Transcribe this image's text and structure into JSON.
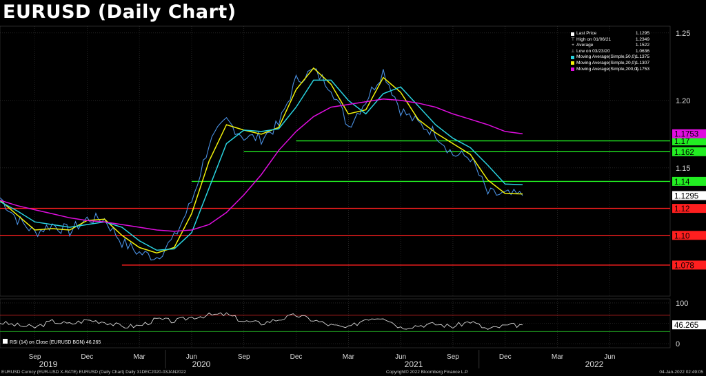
{
  "title": "EURUSD (Daily Chart)",
  "colors": {
    "background": "#000000",
    "price": "#4a90e2",
    "ma50": "#29d3e0",
    "ma20": "#f2f20a",
    "ma200": "#e00ee0",
    "support_resistance_green": "#22ee22",
    "support_resistance_red": "#ff1f1f",
    "rsi": "#d8d8d8"
  },
  "legend": [
    {
      "label": "Last Price",
      "value": "1.1295",
      "mark": "square-white"
    },
    {
      "label": "High on 01/06/21",
      "value": "1.2349",
      "mark": "high-marker"
    },
    {
      "label": "Average",
      "value": "1.1522",
      "mark": "average-marker"
    },
    {
      "label": "Low on 03/23/20",
      "value": "1.0636",
      "mark": "low-marker"
    },
    {
      "label": "Moving Average(Simple,50,0)",
      "value": "1.1375",
      "color": "#29d3e0"
    },
    {
      "label": "Moving Average(Simple,20,0)",
      "value": "1.1307",
      "color": "#f2f20a"
    },
    {
      "label": "Moving Average(Simple,200,0)",
      "value": "1.1753",
      "color": "#e00ee0"
    }
  ],
  "footer": {
    "left": "EURUSD Curncy (EUR-USD X-RATE) EURUSD (Daily Chart)  Daily 31DEC2020-03JAN2022",
    "center": "Copyright© 2022 Bloomberg Finance L.P.",
    "right": "04-Jan-2022 02:49:05"
  },
  "chart_data": [
    {
      "type": "line",
      "title": "EURUSD (Daily Chart)",
      "y_axis_position": "right",
      "ylim": [
        1.055,
        1.255
      ],
      "y_ticks": [
        1.25,
        1.2,
        1.15
      ],
      "x_ticks": [
        "Sep",
        "Dec",
        "Mar",
        "Jun",
        "Sep",
        "Dec",
        "Mar",
        "Jun",
        "Sep",
        "Dec",
        "Mar",
        "Jun"
      ],
      "x_year_labels": [
        "2019",
        "2020",
        "2021",
        "2022"
      ],
      "grid": true,
      "legend_position": "top-right",
      "x": [
        "Jul 2019",
        "Aug 2019",
        "Sep 2019",
        "Oct 2019",
        "Nov 2019",
        "Dec 2019",
        "Jan 2020",
        "Feb 2020",
        "Mar 2020",
        "Apr 2020",
        "May 2020",
        "Jun 2020",
        "Jul 2020",
        "Aug 2020",
        "Sep 2020",
        "Oct 2020",
        "Nov 2020",
        "Dec 2020",
        "Jan 2021",
        "Feb 2021",
        "Mar 2021",
        "Apr 2021",
        "May 2021",
        "Jun 2021",
        "Jul 2021",
        "Aug 2021",
        "Sep 2021",
        "Oct 2021",
        "Nov 2021",
        "Dec 2021",
        "Jan 2022"
      ],
      "series": [
        {
          "name": "Last Price",
          "values": [
            1.128,
            1.112,
            1.102,
            1.108,
            1.103,
            1.112,
            1.112,
            1.095,
            1.087,
            1.084,
            1.098,
            1.125,
            1.168,
            1.185,
            1.173,
            1.172,
            1.182,
            1.215,
            1.222,
            1.21,
            1.181,
            1.2,
            1.222,
            1.193,
            1.183,
            1.176,
            1.16,
            1.158,
            1.131,
            1.13,
            1.1295
          ]
        },
        {
          "name": "Moving Average(Simple,20,0)",
          "values": [
            1.126,
            1.115,
            1.104,
            1.105,
            1.104,
            1.111,
            1.112,
            1.1,
            1.091,
            1.087,
            1.091,
            1.116,
            1.155,
            1.182,
            1.178,
            1.175,
            1.18,
            1.208,
            1.224,
            1.212,
            1.19,
            1.193,
            1.217,
            1.206,
            1.186,
            1.176,
            1.168,
            1.16,
            1.141,
            1.131,
            1.1307
          ]
        },
        {
          "name": "Moving Average(Simple,50,0)",
          "values": [
            1.125,
            1.118,
            1.11,
            1.108,
            1.106,
            1.108,
            1.11,
            1.106,
            1.096,
            1.089,
            1.09,
            1.102,
            1.135,
            1.168,
            1.178,
            1.177,
            1.179,
            1.195,
            1.215,
            1.215,
            1.2,
            1.19,
            1.205,
            1.21,
            1.196,
            1.182,
            1.172,
            1.165,
            1.152,
            1.138,
            1.1375
          ]
        },
        {
          "name": "Moving Average(Simple,200,0)",
          "values": [
            1.126,
            1.122,
            1.119,
            1.116,
            1.113,
            1.111,
            1.11,
            1.108,
            1.106,
            1.104,
            1.103,
            1.104,
            1.108,
            1.117,
            1.13,
            1.145,
            1.163,
            1.177,
            1.188,
            1.195,
            1.197,
            1.199,
            1.201,
            1.2,
            1.198,
            1.195,
            1.19,
            1.186,
            1.182,
            1.177,
            1.1753
          ]
        }
      ],
      "horizontal_lines": [
        {
          "value": 1.17,
          "label": "1.17",
          "color": "#22ee22",
          "start": "Dec 2020"
        },
        {
          "value": 1.162,
          "label": "1.162",
          "color": "#22ee22",
          "start": "Sep 2020"
        },
        {
          "value": 1.14,
          "label": "1.14",
          "color": "#22ee22",
          "start": "Jun 2020"
        },
        {
          "value": 1.12,
          "label": "1.12",
          "color": "#ff1f1f",
          "start": "Jul 2019"
        },
        {
          "value": 1.1,
          "label": "1.10",
          "color": "#ff1f1f",
          "start": "Jul 2019"
        },
        {
          "value": 1.078,
          "label": "1.078",
          "color": "#ff1f1f",
          "start": "Feb 2020"
        }
      ],
      "price_tags": [
        {
          "label": "1.1753",
          "value": 1.1753,
          "color": "#e00ee0"
        },
        {
          "label": "1.1295",
          "value": 1.1295,
          "color": "#ffffff"
        }
      ]
    },
    {
      "type": "line",
      "title": "RSI (14)  on Close (EURUSD BGN) 46.265",
      "y_axis_position": "right",
      "ylim": [
        -10,
        110
      ],
      "y_ticks": [
        100,
        50,
        0
      ],
      "bands": [
        70,
        30
      ],
      "series": [
        {
          "name": "RSI (14)",
          "values": [
            52,
            45,
            40,
            55,
            48,
            58,
            54,
            42,
            44,
            60,
            55,
            65,
            70,
            72,
            55,
            50,
            60,
            70,
            58,
            45,
            38,
            62,
            66,
            40,
            45,
            48,
            42,
            55,
            35,
            44,
            46.265
          ]
        }
      ],
      "last_value_label": "46.265"
    }
  ]
}
